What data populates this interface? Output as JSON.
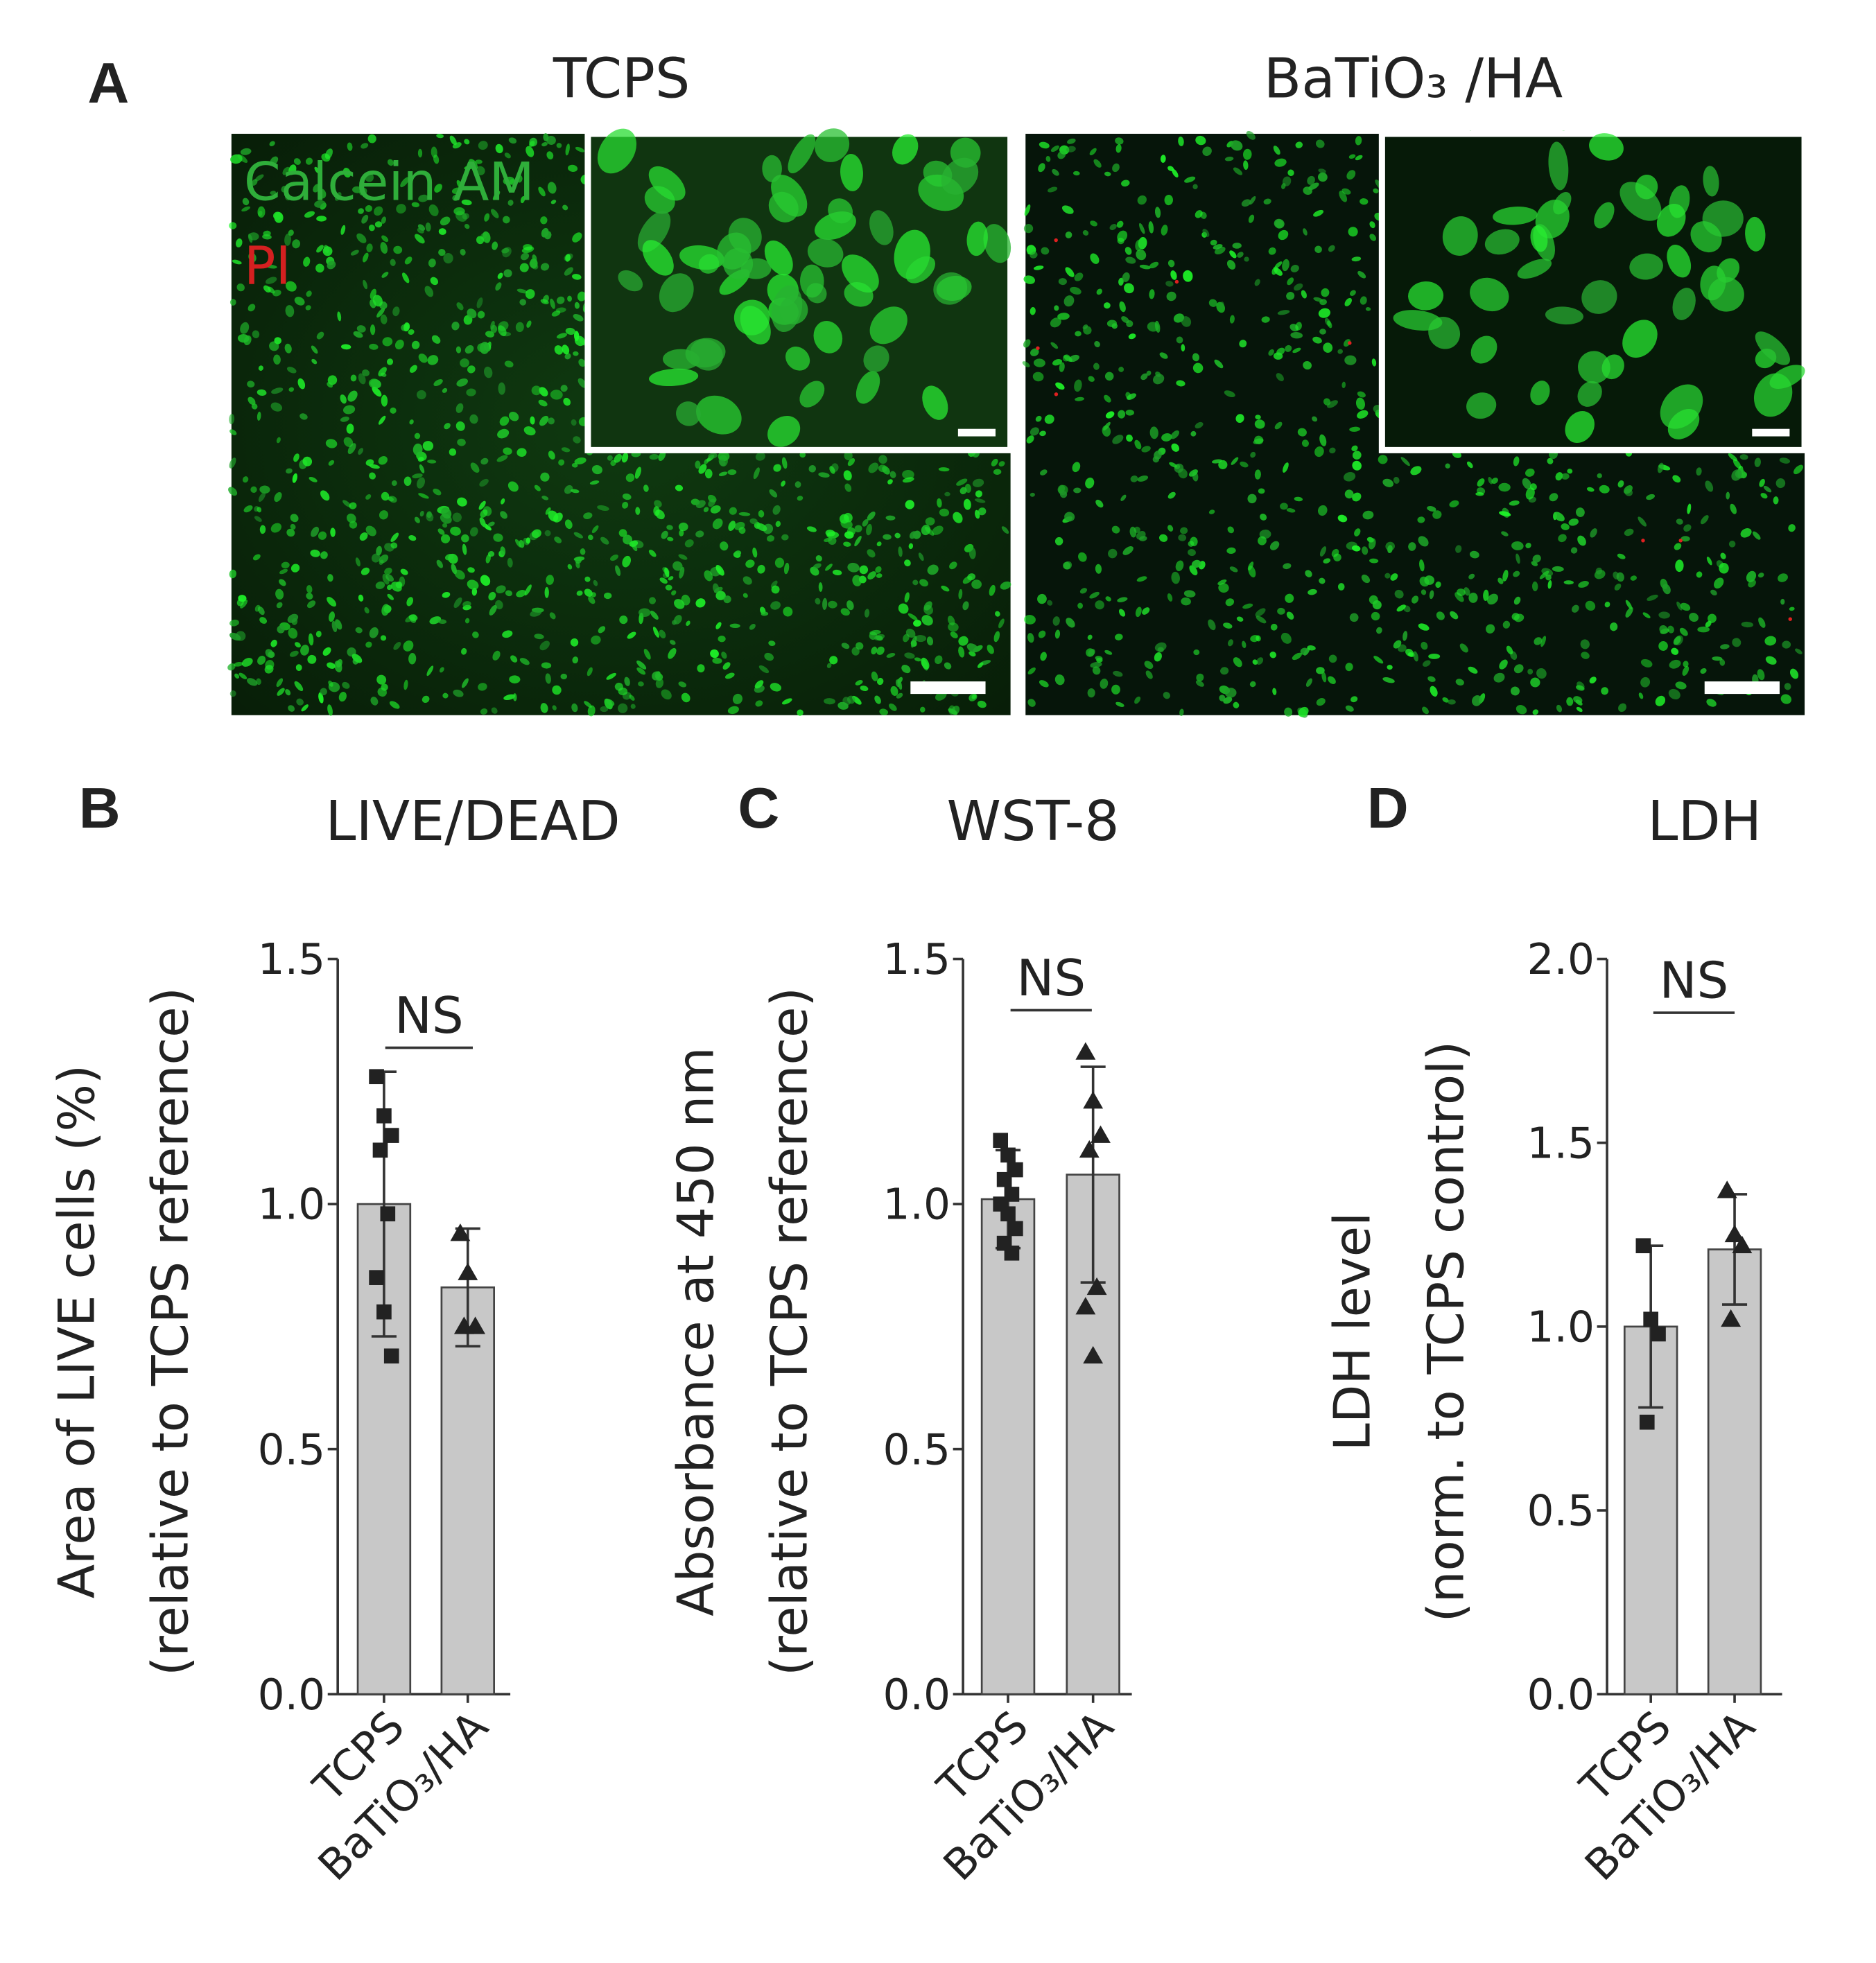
{
  "panel_a": {
    "label": "A",
    "left_title": "TCPS",
    "right_title": "BaTiO₃ /HA",
    "stain_live": "Calcein AM",
    "stain_dead": "PI"
  },
  "chart_data": [
    {
      "type": "bar",
      "panel": "B",
      "title": "LIVE/DEAD",
      "y_label": [
        "Area of LIVE cells (%)",
        "(relative to TCPS reference)"
      ],
      "categories": [
        "TCPS",
        "BaTiO₃/HA"
      ],
      "values": [
        1.0,
        0.83
      ],
      "errors": [
        0.27,
        0.12
      ],
      "points": [
        [
          1.26,
          1.18,
          1.14,
          1.11,
          0.98,
          0.85,
          0.78,
          0.69
        ],
        [
          0.94,
          0.86,
          0.75,
          0.75
        ]
      ],
      "markers": [
        "square",
        "triangle"
      ],
      "color": "#c8c8c8",
      "annotation": "NS",
      "ylim": [
        0,
        1.5
      ],
      "yticks": [
        {
          "value": 0,
          "label": "0.0"
        },
        0.5,
        {
          "value": 1,
          "label": "1.0"
        },
        1.5
      ]
    },
    {
      "type": "bar",
      "panel": "C",
      "title": "WST-8",
      "y_label": [
        "Absorbance at 450 nm",
        "(relative to TCPS reference)"
      ],
      "categories": [
        "TCPS",
        "BaTiO₃/HA"
      ],
      "values": [
        1.01,
        1.06
      ],
      "errors": [
        0.1,
        0.22
      ],
      "points": [
        [
          1.13,
          1.1,
          1.07,
          1.05,
          1.02,
          1.0,
          0.98,
          0.95,
          0.92,
          0.9
        ],
        [
          1.31,
          1.21,
          1.14,
          1.11,
          0.83,
          0.79,
          0.69
        ]
      ],
      "markers": [
        "square",
        "triangle"
      ],
      "color": "#c8c8c8",
      "annotation": "NS",
      "ylim": [
        0,
        1.5
      ],
      "yticks": [
        {
          "value": 0,
          "label": "0.0"
        },
        0.5,
        {
          "value": 1,
          "label": "1.0"
        },
        1.5
      ]
    },
    {
      "type": "bar",
      "panel": "D",
      "title": "LDH",
      "y_label": [
        "LDH level",
        "(norm. to TCPS control)"
      ],
      "categories": [
        "TCPS",
        "BaTiO₃/HA"
      ],
      "values": [
        1.0,
        1.21
      ],
      "errors": [
        0.22,
        0.15
      ],
      "points": [
        [
          1.22,
          1.02,
          0.98,
          0.74
        ],
        [
          1.37,
          1.25,
          1.22,
          1.02
        ]
      ],
      "markers": [
        "square",
        "triangle"
      ],
      "color": "#c8c8c8",
      "annotation": "NS",
      "ylim": [
        0,
        2
      ],
      "yticks": [
        {
          "value": 0,
          "label": "0.0"
        },
        0.5,
        {
          "value": 1,
          "label": "1.0"
        },
        1.5,
        {
          "value": 2,
          "label": "2.0"
        }
      ]
    }
  ]
}
